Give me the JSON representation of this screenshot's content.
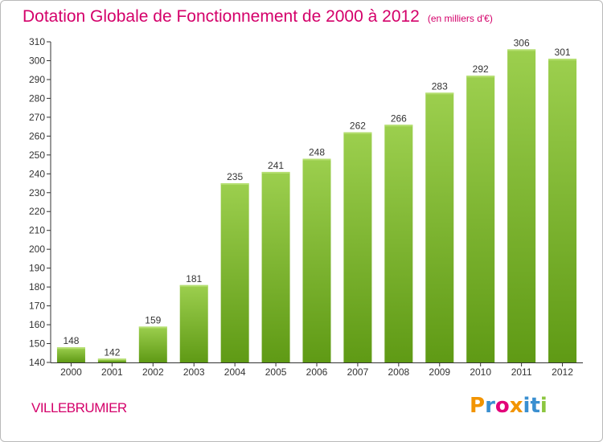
{
  "header": {
    "title": "Dotation Globale de Fonctionnement de 2000 à 2012",
    "subtitle": "(en milliers d'€)"
  },
  "footer": {
    "commune": "VILLEBRUMIER",
    "logo_letters": [
      "P",
      "r",
      "o",
      "x",
      "i",
      "t",
      "i"
    ],
    "logo_colors": [
      "#f29400",
      "#3a8fd0",
      "#e2007a",
      "#f29400",
      "#3a8fd0",
      "#3a8fd0",
      "#8cc63f"
    ]
  },
  "chart_data": {
    "type": "bar",
    "title": "Dotation Globale de Fonctionnement de 2000 à 2012",
    "subtitle": "(en milliers d'€)",
    "xlabel": "",
    "ylabel": "",
    "categories": [
      "2000",
      "2001",
      "2002",
      "2003",
      "2004",
      "2005",
      "2006",
      "2007",
      "2008",
      "2009",
      "2010",
      "2011",
      "2012"
    ],
    "values": [
      148,
      142,
      159,
      181,
      235,
      241,
      248,
      262,
      266,
      283,
      292,
      306,
      301
    ],
    "ylim": [
      140,
      310
    ],
    "yticks": [
      140,
      150,
      160,
      170,
      180,
      190,
      200,
      210,
      220,
      230,
      240,
      250,
      260,
      270,
      280,
      290,
      300,
      310
    ],
    "grid": false,
    "legend": "none",
    "colors": {
      "bar_top": "#9ccf4e",
      "bar_bottom": "#5f9a15",
      "axis": "#333333",
      "label": "#333333"
    }
  }
}
